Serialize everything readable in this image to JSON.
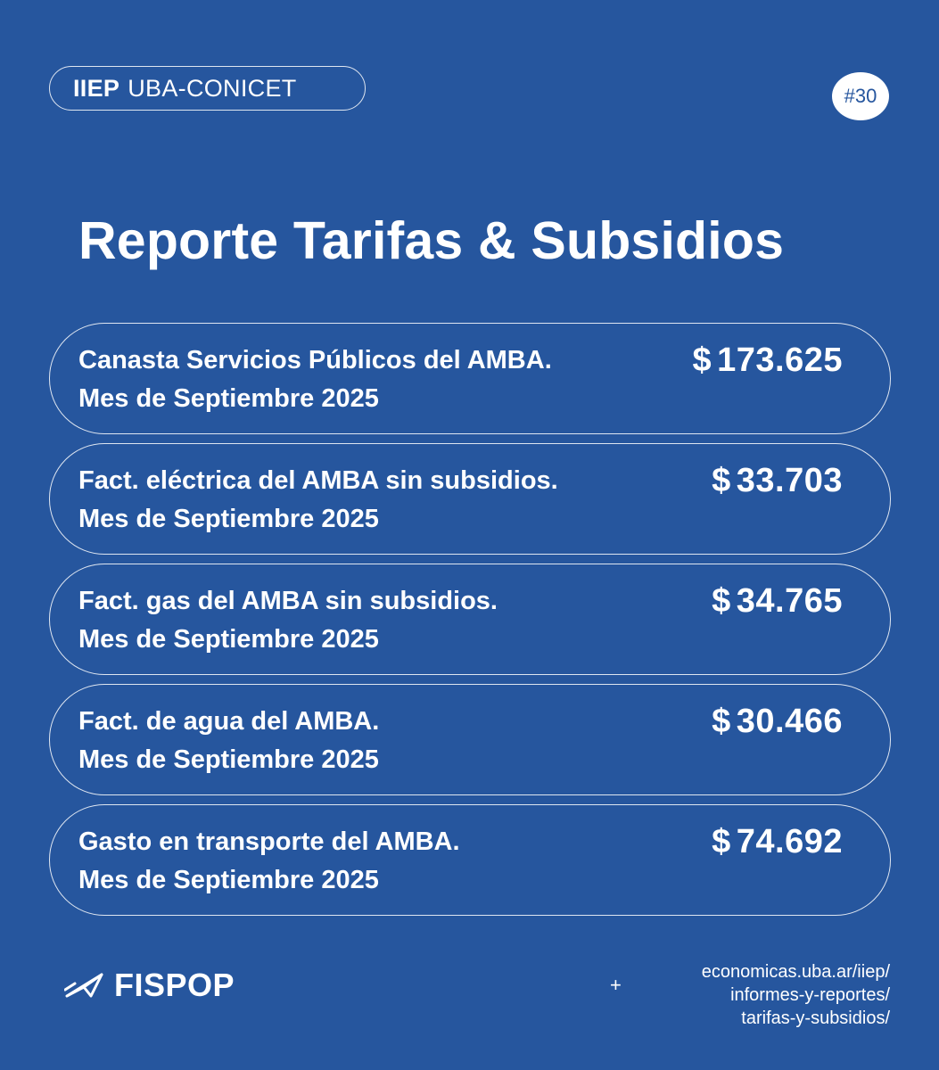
{
  "header": {
    "org_strong": "IIEP",
    "org_rest": "UBA-CONICET",
    "issue_number": "#30"
  },
  "title": "Reporte Tarifas & Subsidios",
  "cards": [
    {
      "line1": "Canasta Servicios Públicos del AMBA.",
      "line2": "Mes de Septiembre 2025",
      "currency": "$",
      "amount": "173.625"
    },
    {
      "line1": "Fact. eléctrica del AMBA sin subsidios.",
      "line2": "Mes de Septiembre 2025",
      "currency": "$",
      "amount": "33.703"
    },
    {
      "line1": "Fact. gas del AMBA sin subsidios.",
      "line2": "Mes de Septiembre 2025",
      "currency": "$",
      "amount": "34.765"
    },
    {
      "line1": "Fact. de agua del AMBA.",
      "line2": "Mes de Septiembre 2025",
      "currency": "$",
      "amount": "30.466"
    },
    {
      "line1": "Gasto en transporte del AMBA.",
      "line2": "Mes de Septiembre 2025",
      "currency": "$",
      "amount": "74.692"
    }
  ],
  "footer": {
    "brand": "FISPOP",
    "brand_icon": "paper-plane-icon",
    "plus": "+",
    "url_lines": [
      "economicas.uba.ar/iiep/",
      "informes-y-reportes/",
      "tarifas-y-subsidios/"
    ]
  },
  "colors": {
    "background": "#26569e",
    "foreground": "#ffffff"
  }
}
